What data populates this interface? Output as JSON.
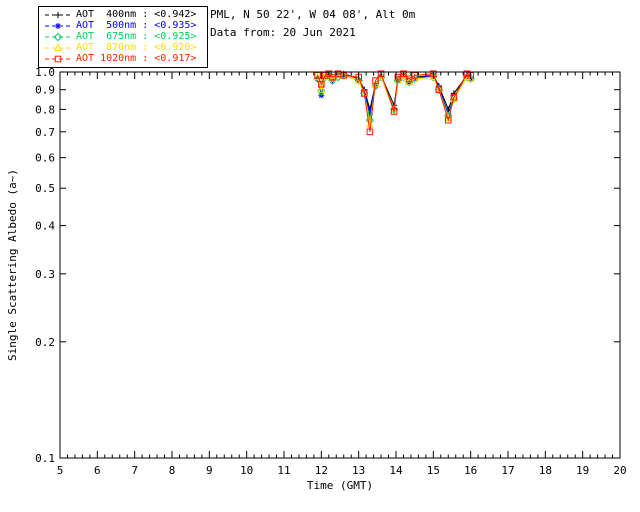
{
  "header": {
    "line1": "PML, N 50 22', W 04 08', Alt 0m",
    "line2": "Data from: 20 Jun 2021"
  },
  "legend": {
    "items": [
      {
        "label": "AOT  400nm : <0.942>",
        "color": "#000000"
      },
      {
        "label": "AOT  500nm : <0.935>",
        "color": "#0000ff"
      },
      {
        "label": "AOT  675nm : <0.925>",
        "color": "#00d060"
      },
      {
        "label": "AOT  870nm : <0.920>",
        "color": "#ffe000"
      },
      {
        "label": "AOT 1020nm : <0.917>",
        "color": "#ff2000"
      }
    ]
  },
  "chart_data": {
    "type": "line",
    "title": "",
    "xlabel": "Time (GMT)",
    "ylabel": "Single Scattering Albedo (a~)",
    "xlim": [
      5,
      20
    ],
    "ylim": [
      0.1,
      1.0
    ],
    "yscale": "log",
    "grid": false,
    "legend_position": "top-left",
    "xticks": [
      5,
      6,
      7,
      8,
      9,
      10,
      11,
      12,
      13,
      14,
      15,
      16,
      17,
      18,
      19,
      20
    ],
    "yticks": [
      1.0,
      0.9,
      0.8,
      0.7,
      0.6,
      0.5,
      0.4,
      0.3,
      0.2,
      0.1
    ],
    "x": [
      11.9,
      12.0,
      12.1,
      12.2,
      12.3,
      12.45,
      12.6,
      13.0,
      13.15,
      13.3,
      13.45,
      13.6,
      13.95,
      14.05,
      14.2,
      14.35,
      14.5,
      15.0,
      15.15,
      15.4,
      15.55,
      15.9,
      16.0
    ],
    "series": [
      {
        "name": "AOT 400nm",
        "mean": 0.942,
        "color": "#000000",
        "marker": "plus",
        "values": [
          0.97,
          0.9,
          0.98,
          0.99,
          0.96,
          0.98,
          0.99,
          0.96,
          0.9,
          0.8,
          0.93,
          0.98,
          0.82,
          0.96,
          0.98,
          0.95,
          0.97,
          0.98,
          0.92,
          0.8,
          0.88,
          0.98,
          0.97
        ]
      },
      {
        "name": "AOT 500nm",
        "mean": 0.935,
        "color": "#0000ff",
        "marker": "asterisk",
        "values": [
          0.96,
          0.87,
          0.97,
          0.98,
          0.95,
          0.98,
          0.98,
          0.95,
          0.89,
          0.78,
          0.92,
          0.97,
          0.8,
          0.95,
          0.98,
          0.94,
          0.96,
          0.98,
          0.91,
          0.78,
          0.86,
          0.97,
          0.96
        ]
      },
      {
        "name": "AOT 675nm",
        "mean": 0.925,
        "color": "#00d060",
        "marker": "diamond",
        "values": [
          0.96,
          0.89,
          0.97,
          0.98,
          0.95,
          0.97,
          0.98,
          0.95,
          0.88,
          0.75,
          0.92,
          0.97,
          0.8,
          0.95,
          0.97,
          0.94,
          0.96,
          0.97,
          0.9,
          0.77,
          0.85,
          0.97,
          0.96
        ]
      },
      {
        "name": "AOT 870nm",
        "mean": 0.92,
        "color": "#ffe000",
        "marker": "triangle",
        "values": [
          0.97,
          0.9,
          0.97,
          0.98,
          0.96,
          0.98,
          0.98,
          0.95,
          0.88,
          0.73,
          0.93,
          0.97,
          0.79,
          0.95,
          0.97,
          0.94,
          0.96,
          0.97,
          0.9,
          0.76,
          0.85,
          0.97,
          0.96
        ]
      },
      {
        "name": "AOT 1020nm",
        "mean": 0.917,
        "color": "#ff2000",
        "marker": "square",
        "values": [
          0.98,
          0.93,
          0.98,
          0.99,
          0.97,
          0.99,
          0.98,
          0.97,
          0.88,
          0.7,
          0.95,
          0.99,
          0.79,
          0.97,
          0.99,
          0.96,
          0.98,
          0.99,
          0.9,
          0.75,
          0.86,
          0.99,
          0.98
        ]
      }
    ]
  }
}
